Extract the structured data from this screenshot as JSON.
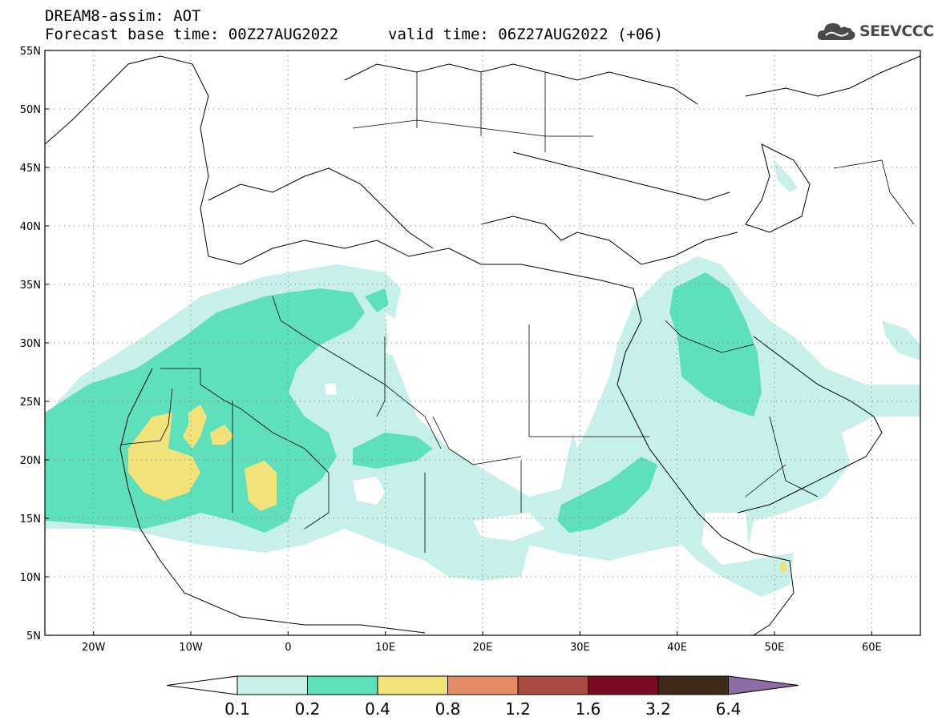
{
  "header": {
    "title": "DREAM8-assim: AOT",
    "base_time": "Forecast base time: 00Z27AUG2022",
    "valid_time": "valid time: 06Z27AUG2022 (+06)",
    "logo_text": "SEEVCCC"
  },
  "map": {
    "lon_range": [
      -25,
      65
    ],
    "lat_range": [
      5,
      55
    ],
    "lat_ticks": [
      "55N",
      "50N",
      "45N",
      "40N",
      "35N",
      "30N",
      "25N",
      "20N",
      "15N",
      "10N",
      "5N"
    ],
    "lon_ticks": [
      "20W",
      "10W",
      "0",
      "10E",
      "20E",
      "30E",
      "40E",
      "50E",
      "60E"
    ],
    "grid": "dotted"
  },
  "legend": {
    "levels": [
      "0.1",
      "0.2",
      "0.4",
      "0.8",
      "1.2",
      "1.6",
      "3.2",
      "6.4"
    ],
    "colors": [
      "#ffffff",
      "#c8f0ea",
      "#5fe0bc",
      "#f2e27a",
      "#e58b66",
      "#a94b3f",
      "#7d0a25",
      "#3f2a19",
      "#8c6ba6"
    ]
  }
}
